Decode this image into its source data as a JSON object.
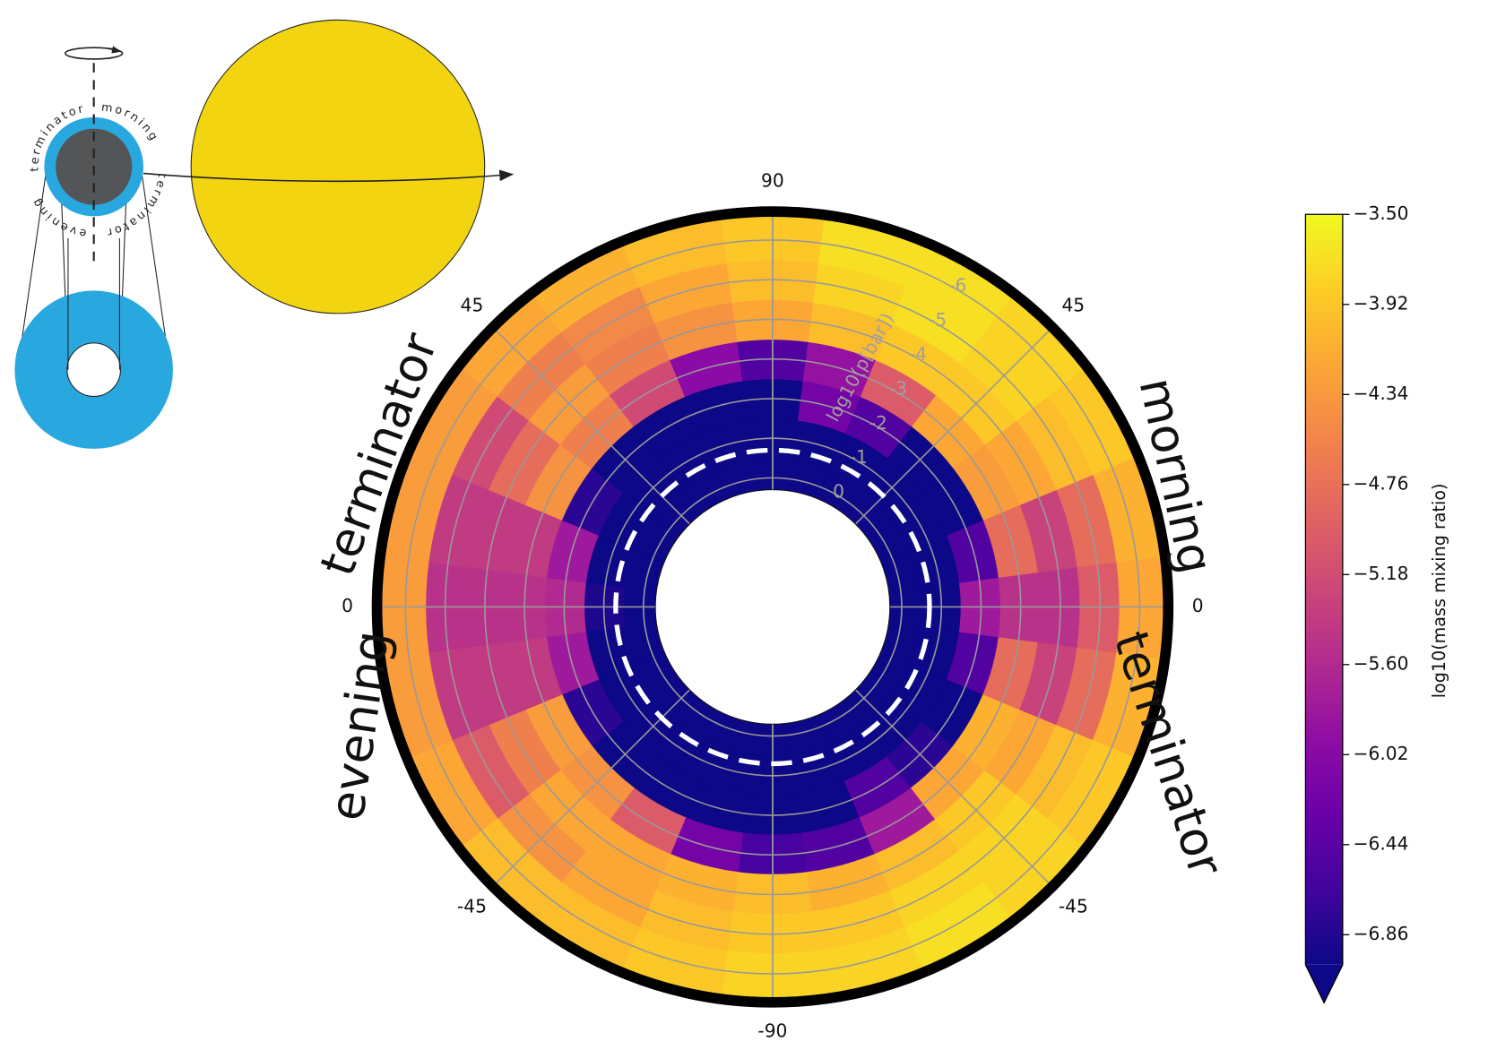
{
  "chart_data": {
    "type": "polar_contour",
    "latitudes": [
      -90,
      -75,
      -60,
      -45,
      -30,
      -15,
      0,
      15,
      30,
      45,
      60,
      75,
      90
    ],
    "levels": [
      0,
      -1,
      -2,
      -3,
      -4,
      -5,
      -6
    ],
    "series": [
      {
        "side": "left",
        "values": [
          [
            -7,
            -7,
            -7,
            -6.6,
            -4.0,
            -3.9,
            -3.8
          ],
          [
            -7,
            -7,
            -7,
            -6.2,
            -4.1,
            -4.0,
            -3.9
          ],
          [
            -7,
            -7,
            -7,
            -5.0,
            -4.2,
            -4.2,
            -4.0
          ],
          [
            -7,
            -7,
            -7,
            -4.4,
            -4.2,
            -4.4,
            -4.0
          ],
          [
            -7,
            -7,
            -6.8,
            -4.3,
            -4.6,
            -5.0,
            -4.2
          ],
          [
            -7,
            -7,
            -5.8,
            -5.4,
            -5.4,
            -5.4,
            -4.3
          ],
          [
            -7,
            -6.9,
            -5.6,
            -5.5,
            -5.5,
            -5.5,
            -4.3
          ],
          [
            -7,
            -7,
            -5.8,
            -5.4,
            -5.4,
            -5.4,
            -4.3
          ],
          [
            -7,
            -7,
            -6.8,
            -4.4,
            -4.8,
            -5.2,
            -4.3
          ],
          [
            -7,
            -7,
            -7,
            -4.6,
            -4.3,
            -4.6,
            -4.2
          ],
          [
            -7,
            -7,
            -7,
            -5.2,
            -4.6,
            -4.5,
            -4.1
          ],
          [
            -7,
            -7,
            -7,
            -6.0,
            -4.4,
            -4.2,
            -4.0
          ],
          [
            -7,
            -7,
            -7,
            -6.5,
            -4.2,
            -4.0,
            -3.9
          ]
        ]
      },
      {
        "side": "right",
        "values": [
          [
            -7,
            -7,
            -7,
            -6.6,
            -4.0,
            -3.9,
            -3.8
          ],
          [
            -7,
            -7,
            -7,
            -6.5,
            -4.1,
            -3.9,
            -3.8
          ],
          [
            -7,
            -7,
            -6.5,
            -5.8,
            -4.0,
            -3.8,
            -3.7
          ],
          [
            -7,
            -7,
            -6.8,
            -4.2,
            -3.9,
            -3.8,
            -3.8
          ],
          [
            -7,
            -7,
            -7,
            -4.1,
            -4.2,
            -4.0,
            -3.9
          ],
          [
            -7,
            -7,
            -6.5,
            -4.8,
            -5.3,
            -4.8,
            -4.1
          ],
          [
            -7,
            -7,
            -5.8,
            -5.5,
            -5.5,
            -5.0,
            -4.2
          ],
          [
            -7,
            -7,
            -6.5,
            -4.8,
            -5.3,
            -4.8,
            -4.1
          ],
          [
            -7,
            -7,
            -7,
            -4.3,
            -4.2,
            -4.0,
            -3.9
          ],
          [
            -7,
            -7,
            -7,
            -4.2,
            -3.9,
            -3.8,
            -3.8
          ],
          [
            -7,
            -7,
            -6.5,
            -5.0,
            -3.9,
            -3.7,
            -3.7
          ],
          [
            -7,
            -7,
            -6.2,
            -5.9,
            -4.0,
            -3.8,
            -3.7
          ],
          [
            -7,
            -7,
            -7,
            -6.5,
            -4.2,
            -4.0,
            -3.9
          ]
        ]
      }
    ],
    "lat_ticks": [
      -90,
      -45,
      0,
      45,
      90
    ],
    "rlim": [
      0.3,
      -6.6
    ],
    "rticks": [
      0,
      -1,
      -2,
      -3,
      -4,
      -5,
      -6
    ],
    "r_label": "log10(p[bar])",
    "dashed_level": -0.7,
    "side_labels": [
      "terminator",
      "evening",
      "morning",
      "terminator"
    ],
    "clim": [
      -7.0,
      -3.5
    ],
    "colorbar_extend": "min",
    "cticks": [
      {
        "value": -3.5,
        "label": "−3.50"
      },
      {
        "value": -3.92,
        "label": "−3.92"
      },
      {
        "value": -4.34,
        "label": "−4.34"
      },
      {
        "value": -4.76,
        "label": "−4.76"
      },
      {
        "value": -5.18,
        "label": "−5.18"
      },
      {
        "value": -5.6,
        "label": "−5.60"
      },
      {
        "value": -6.02,
        "label": "−6.02"
      },
      {
        "value": -6.44,
        "label": "−6.44"
      },
      {
        "value": -6.86,
        "label": "−6.86"
      }
    ],
    "colorbar_label": "log10(mass mixing ratio)",
    "colors": [
      "#0d0887",
      "#41049d",
      "#6a00a8",
      "#8f0da4",
      "#b12a90",
      "#cc4778",
      "#e16462",
      "#f2844b",
      "#fca636",
      "#fcce25",
      "#f0f921"
    ],
    "grid": true
  },
  "inset_labels": [
    "terminator",
    "morning",
    "terminator",
    "evening"
  ]
}
